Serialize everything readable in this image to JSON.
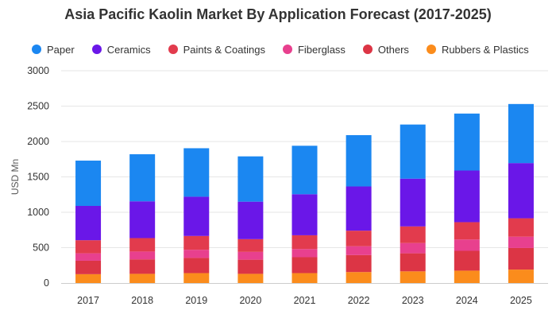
{
  "chart_data": {
    "type": "bar",
    "stacked": true,
    "title": "Asia Pacific Kaolin Market By Application Forecast (2017-2025)",
    "xlabel": "",
    "ylabel": "USD Mn",
    "ylim": [
      0,
      3000
    ],
    "yticks": [
      0,
      500,
      1000,
      1500,
      2000,
      2500,
      3000
    ],
    "grid": true,
    "legend_position": "top",
    "categories": [
      "2017",
      "2018",
      "2019",
      "2020",
      "2021",
      "2022",
      "2023",
      "2024",
      "2025"
    ],
    "series": [
      {
        "name": "Rubbers & Plastics",
        "color": "#fb8c1c",
        "values": [
          125,
          130,
          140,
          130,
          140,
          155,
          165,
          175,
          190
        ]
      },
      {
        "name": "Others",
        "color": "#dc3545",
        "values": [
          190,
          205,
          215,
          200,
          225,
          240,
          255,
          280,
          305
        ]
      },
      {
        "name": "Fiberglass",
        "color": "#e8408e",
        "values": [
          105,
          110,
          115,
          110,
          115,
          125,
          145,
          160,
          160
        ]
      },
      {
        "name": "Paints & Coatings",
        "color": "#e23b4d",
        "values": [
          185,
          190,
          195,
          180,
          195,
          220,
          235,
          245,
          260
        ]
      },
      {
        "name": "Ceramics",
        "color": "#6a17e8",
        "values": [
          485,
          520,
          555,
          530,
          580,
          625,
          675,
          730,
          780
        ]
      },
      {
        "name": "Paper",
        "color": "#1b87f1",
        "values": [
          640,
          665,
          685,
          640,
          685,
          725,
          765,
          805,
          835
        ]
      }
    ],
    "legend_order": [
      "Paper",
      "Ceramics",
      "Paints & Coatings",
      "Fiberglass",
      "Others",
      "Rubbers & Plastics"
    ]
  }
}
